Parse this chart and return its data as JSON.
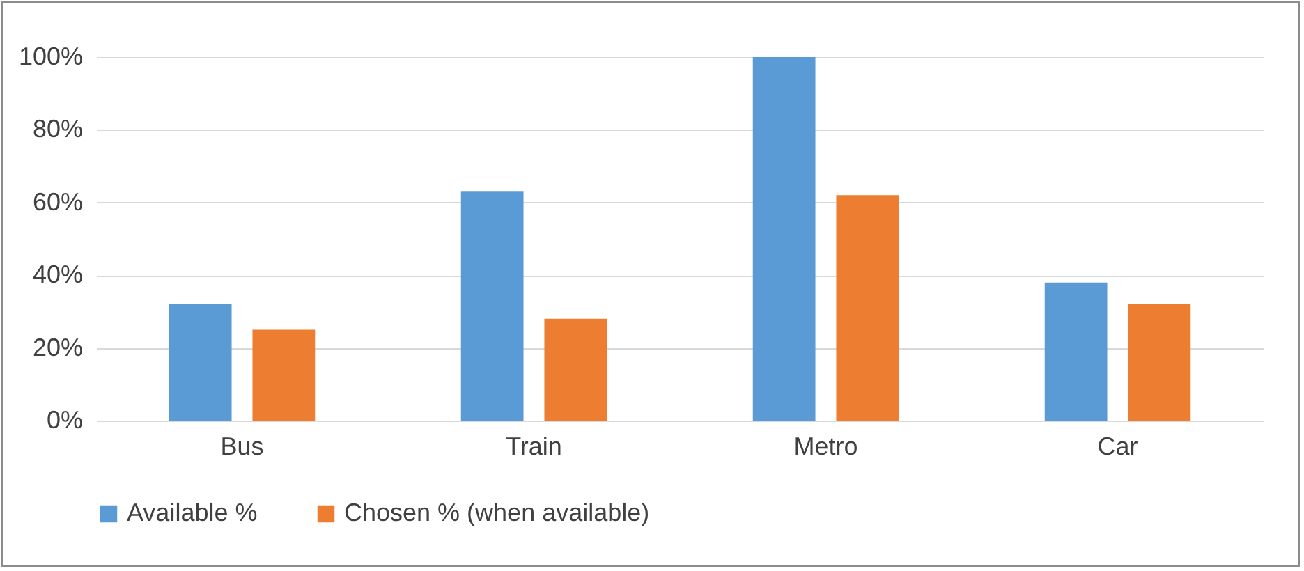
{
  "chart_data": {
    "type": "bar",
    "categories": [
      "Bus",
      "Train",
      "Metro",
      "Car"
    ],
    "series": [
      {
        "name": "Available %",
        "color": "#5b9bd5",
        "values": [
          32,
          63,
          100,
          38
        ]
      },
      {
        "name": "Chosen % (when available)",
        "color": "#ed7d31",
        "values": [
          25,
          28,
          62,
          32
        ]
      }
    ],
    "ylim": [
      0,
      100
    ],
    "yticks": [
      {
        "value": 0,
        "label": "0%"
      },
      {
        "value": 20,
        "label": "20%"
      },
      {
        "value": 40,
        "label": "40%"
      },
      {
        "value": 60,
        "label": "60%"
      },
      {
        "value": 80,
        "label": "80%"
      },
      {
        "value": 100,
        "label": "100%"
      }
    ],
    "grid": "y",
    "legend": "bottom"
  }
}
